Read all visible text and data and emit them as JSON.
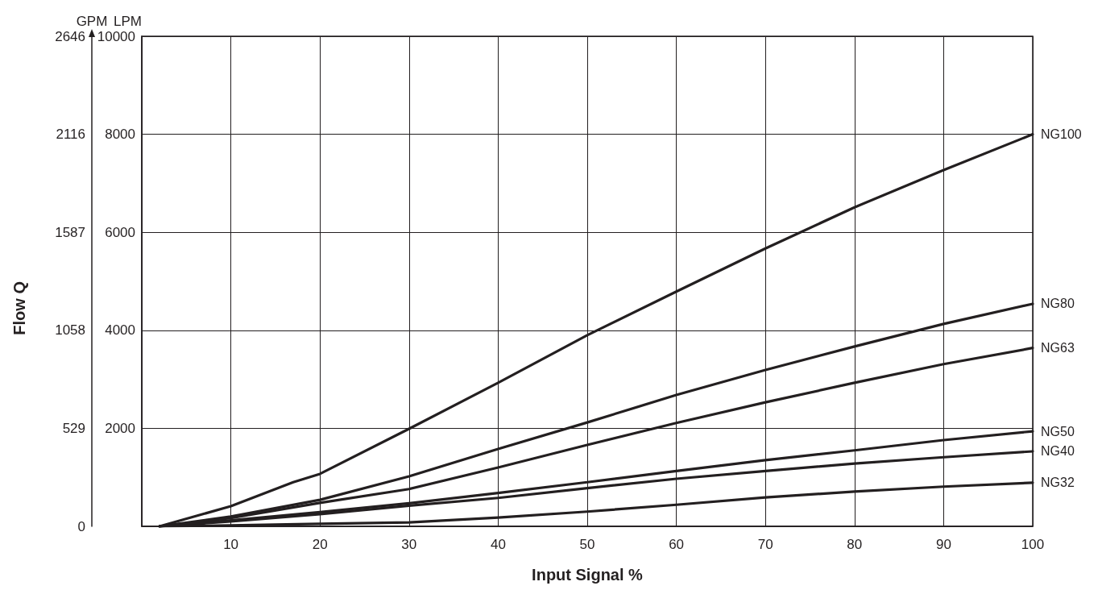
{
  "chart_data": {
    "type": "line",
    "xlabel": "Input Signal %",
    "ylabel": "LPM",
    "y2label": "GPM",
    "annotations": [
      "Flow Q"
    ],
    "xlim": [
      0,
      100
    ],
    "xticks": [
      {
        "value": 0,
        "label": null
      },
      10,
      20,
      30,
      40,
      50,
      60,
      70,
      80,
      90,
      100
    ],
    "ylim": [
      0,
      10000
    ],
    "yticks": [
      {
        "value": 0,
        "label": null
      },
      2000,
      4000,
      6000,
      8000,
      10000
    ],
    "y2lim": [
      0,
      2646
    ],
    "y2ticks": [
      0,
      529,
      1058,
      1587,
      2116,
      2646
    ],
    "grid": true,
    "legend": false,
    "marker": "none",
    "line_style": "solid",
    "series": [
      {
        "name": "NG100",
        "color": "#231f20",
        "x": [
          2,
          10,
          17,
          20,
          30,
          40,
          50,
          60,
          70,
          80,
          90,
          100
        ],
        "values": [
          0,
          410,
          900,
          1070,
          1990,
          2930,
          3900,
          4790,
          5670,
          6510,
          7270,
          8000
        ]
      },
      {
        "name": "NG80",
        "color": "#231f20",
        "x": [
          2,
          10,
          20,
          30,
          40,
          50,
          60,
          70,
          80,
          90,
          100
        ],
        "values": [
          0,
          200,
          540,
          1020,
          1580,
          2120,
          2680,
          3190,
          3670,
          4130,
          4540
        ]
      },
      {
        "name": "NG63",
        "color": "#231f20",
        "x": [
          2,
          10,
          20,
          30,
          40,
          50,
          60,
          70,
          80,
          90,
          100
        ],
        "values": [
          0,
          170,
          480,
          760,
          1200,
          1660,
          2110,
          2530,
          2930,
          3310,
          3640
        ]
      },
      {
        "name": "NG50",
        "color": "#231f20",
        "x": [
          2,
          10,
          20,
          30,
          40,
          50,
          60,
          70,
          80,
          90,
          100
        ],
        "values": [
          0,
          120,
          290,
          470,
          680,
          900,
          1130,
          1350,
          1550,
          1760,
          1940
        ]
      },
      {
        "name": "NG40",
        "color": "#231f20",
        "x": [
          2,
          10,
          20,
          30,
          40,
          50,
          60,
          70,
          80,
          90,
          100
        ],
        "values": [
          0,
          100,
          250,
          420,
          580,
          780,
          970,
          1130,
          1280,
          1410,
          1530
        ]
      },
      {
        "name": "NG32",
        "color": "#231f20",
        "x": [
          2,
          10,
          20,
          30,
          40,
          50,
          60,
          70,
          80,
          90,
          100
        ],
        "values": [
          0,
          20,
          50,
          80,
          180,
          300,
          440,
          590,
          710,
          810,
          890
        ]
      }
    ]
  }
}
